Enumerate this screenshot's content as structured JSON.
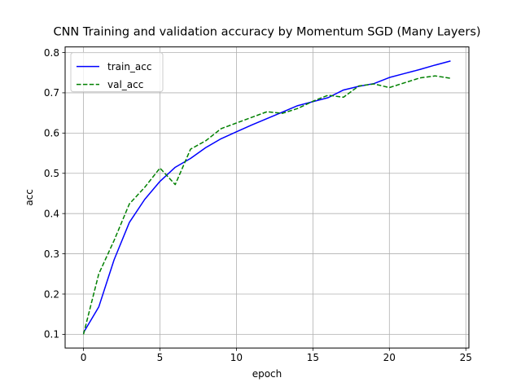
{
  "chart_data": {
    "type": "line",
    "title": "CNN Training and validation accuracy by Momentum SGD (Many Layers)",
    "xlabel": "epoch",
    "ylabel": "acc",
    "xlim": [
      -1.2,
      25.2
    ],
    "ylim": [
      0.066,
      0.814
    ],
    "xticks": [
      0,
      5,
      10,
      15,
      20,
      25
    ],
    "yticks": [
      0.1,
      0.2,
      0.3,
      0.4,
      0.5,
      0.6,
      0.7,
      0.8
    ],
    "grid": true,
    "legend_position": "upper left",
    "x": [
      0,
      1,
      2,
      3,
      4,
      5,
      6,
      7,
      8,
      9,
      10,
      11,
      12,
      13,
      14,
      15,
      16,
      17,
      18,
      19,
      20,
      21,
      22,
      23,
      24
    ],
    "series": [
      {
        "name": "train_acc",
        "color": "#0000ff",
        "style": "solid",
        "values": [
          0.104,
          0.168,
          0.285,
          0.378,
          0.435,
          0.48,
          0.515,
          0.537,
          0.564,
          0.586,
          0.603,
          0.62,
          0.636,
          0.652,
          0.668,
          0.678,
          0.688,
          0.707,
          0.716,
          0.723,
          0.738,
          0.748,
          0.758,
          0.769,
          0.779
        ]
      },
      {
        "name": "val_acc",
        "color": "#008000",
        "style": "dashed",
        "values": [
          0.1,
          0.25,
          0.333,
          0.424,
          0.465,
          0.513,
          0.472,
          0.56,
          0.581,
          0.611,
          0.625,
          0.639,
          0.653,
          0.649,
          0.661,
          0.679,
          0.694,
          0.689,
          0.717,
          0.722,
          0.713,
          0.725,
          0.737,
          0.742,
          0.736
        ]
      }
    ]
  }
}
